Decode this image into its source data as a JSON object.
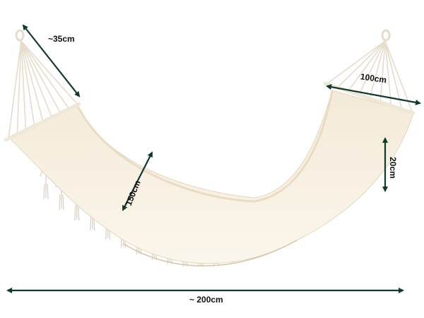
{
  "product": "hammock",
  "colors": {
    "fabric": "#f7efe0",
    "fabric_shadow": "#eadcc4",
    "rope": "#ece4d6",
    "arrow": "#0f3a2c"
  },
  "dimensions": {
    "rope_length": "~35cm",
    "bar_width": "100cm",
    "fringe_height": "20cm",
    "bed_width": "150cm",
    "total_length": "~ 200cm"
  }
}
